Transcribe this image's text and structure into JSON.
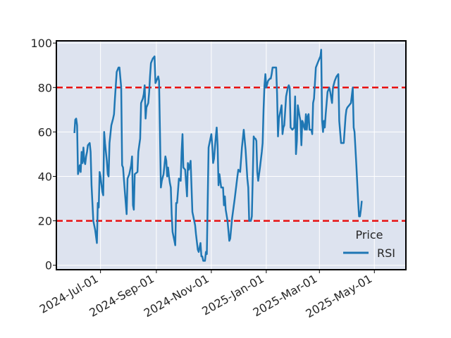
{
  "chart_data": {
    "type": "line",
    "title": "",
    "xlabel": "",
    "ylabel": "",
    "xlim": [
      "2024-05-13",
      "2025-06-05"
    ],
    "ylim": [
      -2,
      101
    ],
    "x_ticks": [
      {
        "date": "2024-07-01",
        "label": "2024-Jul-01"
      },
      {
        "date": "2024-09-01",
        "label": "2024-Sep-01"
      },
      {
        "date": "2024-11-01",
        "label": "2024-Nov-01"
      },
      {
        "date": "2025-01-01",
        "label": "2025-Jan-01"
      },
      {
        "date": "2025-03-01",
        "label": "2025-Mar-01"
      },
      {
        "date": "2025-05-01",
        "label": "2025-May-01"
      }
    ],
    "y_ticks": [
      {
        "value": 0,
        "label": "0"
      },
      {
        "value": 20,
        "label": "20"
      },
      {
        "value": 40,
        "label": "40"
      },
      {
        "value": 60,
        "label": "60"
      },
      {
        "value": 80,
        "label": "80"
      },
      {
        "value": 100,
        "label": "100"
      }
    ],
    "grid": true,
    "background_color": "#dde3ef",
    "reference_lines": [
      {
        "y": 80,
        "color": "#e81010",
        "style": "dashed"
      },
      {
        "y": 20,
        "color": "#e81010",
        "style": "dashed"
      }
    ],
    "legend": {
      "title": "Price",
      "position": "lower-right"
    },
    "series": [
      {
        "name": "RSI",
        "color": "#1f77b4",
        "points": [
          [
            "2024-06-02",
            59.5
          ],
          [
            "2024-06-03",
            65.5
          ],
          [
            "2024-06-04",
            66
          ],
          [
            "2024-06-05",
            63
          ],
          [
            "2024-06-06",
            41
          ],
          [
            "2024-06-07",
            43
          ],
          [
            "2024-06-08",
            45
          ],
          [
            "2024-06-09",
            42
          ],
          [
            "2024-06-10",
            51
          ],
          [
            "2024-06-11",
            46
          ],
          [
            "2024-06-12",
            53
          ],
          [
            "2024-06-13",
            47
          ],
          [
            "2024-06-14",
            45.5
          ],
          [
            "2024-06-15",
            49
          ],
          [
            "2024-06-16",
            51
          ],
          [
            "2024-06-17",
            54
          ],
          [
            "2024-06-19",
            55
          ],
          [
            "2024-06-20",
            51
          ],
          [
            "2024-06-21",
            36
          ],
          [
            "2024-06-23",
            20
          ],
          [
            "2024-06-25",
            16
          ],
          [
            "2024-06-27",
            10
          ],
          [
            "2024-06-28",
            28
          ],
          [
            "2024-06-29",
            26
          ],
          [
            "2024-06-30",
            42
          ],
          [
            "2024-07-01",
            40
          ],
          [
            "2024-07-03",
            33
          ],
          [
            "2024-07-04",
            31.5
          ],
          [
            "2024-07-05",
            60
          ],
          [
            "2024-07-06",
            55
          ],
          [
            "2024-07-08",
            47
          ],
          [
            "2024-07-09",
            41
          ],
          [
            "2024-07-10",
            40
          ],
          [
            "2024-07-11",
            55
          ],
          [
            "2024-07-13",
            63
          ],
          [
            "2024-07-15",
            66
          ],
          [
            "2024-07-16",
            68
          ],
          [
            "2024-07-17",
            75
          ],
          [
            "2024-07-19",
            87
          ],
          [
            "2024-07-21",
            89
          ],
          [
            "2024-07-22",
            89
          ],
          [
            "2024-07-24",
            80
          ],
          [
            "2024-07-25",
            45
          ],
          [
            "2024-07-26",
            44
          ],
          [
            "2024-07-28",
            33
          ],
          [
            "2024-07-30",
            23
          ],
          [
            "2024-07-31",
            39
          ],
          [
            "2024-08-02",
            41
          ],
          [
            "2024-08-04",
            45
          ],
          [
            "2024-08-05",
            49
          ],
          [
            "2024-08-06",
            27
          ],
          [
            "2024-08-07",
            25
          ],
          [
            "2024-08-08",
            41
          ],
          [
            "2024-08-11",
            42
          ],
          [
            "2024-08-12",
            51
          ],
          [
            "2024-08-14",
            57
          ],
          [
            "2024-08-15",
            73
          ],
          [
            "2024-08-17",
            75
          ],
          [
            "2024-08-18",
            77
          ],
          [
            "2024-08-19",
            81
          ],
          [
            "2024-08-20",
            66
          ],
          [
            "2024-08-21",
            71
          ],
          [
            "2024-08-23",
            73
          ],
          [
            "2024-08-24",
            78
          ],
          [
            "2024-08-25",
            85
          ],
          [
            "2024-08-26",
            91
          ],
          [
            "2024-08-28",
            93
          ],
          [
            "2024-08-30",
            94
          ],
          [
            "2024-08-31",
            82
          ],
          [
            "2024-09-01",
            83
          ],
          [
            "2024-09-03",
            85
          ],
          [
            "2024-09-04",
            83
          ],
          [
            "2024-09-05",
            60
          ],
          [
            "2024-09-06",
            35
          ],
          [
            "2024-09-07",
            38
          ],
          [
            "2024-09-09",
            41
          ],
          [
            "2024-09-11",
            49
          ],
          [
            "2024-09-12",
            47
          ],
          [
            "2024-09-13",
            40
          ],
          [
            "2024-09-14",
            44
          ],
          [
            "2024-09-15",
            40
          ],
          [
            "2024-09-16",
            37
          ],
          [
            "2024-09-17",
            35
          ],
          [
            "2024-09-18",
            23
          ],
          [
            "2024-09-19",
            15
          ],
          [
            "2024-09-21",
            11
          ],
          [
            "2024-09-22",
            9
          ],
          [
            "2024-09-23",
            28
          ],
          [
            "2024-09-24",
            28
          ],
          [
            "2024-09-26",
            39
          ],
          [
            "2024-09-28",
            38
          ],
          [
            "2024-09-29",
            51
          ],
          [
            "2024-09-30",
            59
          ],
          [
            "2024-10-01",
            44
          ],
          [
            "2024-10-03",
            43
          ],
          [
            "2024-10-05",
            31
          ],
          [
            "2024-10-06",
            46
          ],
          [
            "2024-10-07",
            43
          ],
          [
            "2024-10-09",
            47
          ],
          [
            "2024-10-11",
            24
          ],
          [
            "2024-10-12",
            22
          ],
          [
            "2024-10-14",
            18
          ],
          [
            "2024-10-15",
            14
          ],
          [
            "2024-10-17",
            7
          ],
          [
            "2024-10-18",
            6
          ],
          [
            "2024-10-20",
            10
          ],
          [
            "2024-10-21",
            4
          ],
          [
            "2024-10-22",
            4
          ],
          [
            "2024-10-23",
            2
          ],
          [
            "2024-10-25",
            2
          ],
          [
            "2024-10-26",
            6
          ],
          [
            "2024-10-27",
            5
          ],
          [
            "2024-10-29",
            53
          ],
          [
            "2024-10-31",
            57
          ],
          [
            "2024-11-01",
            59
          ],
          [
            "2024-11-02",
            54
          ],
          [
            "2024-11-03",
            46
          ],
          [
            "2024-11-04",
            48
          ],
          [
            "2024-11-06",
            58
          ],
          [
            "2024-11-07",
            62
          ],
          [
            "2024-11-08",
            54
          ],
          [
            "2024-11-09",
            36
          ],
          [
            "2024-11-10",
            41
          ],
          [
            "2024-11-12",
            35
          ],
          [
            "2024-11-14",
            35
          ],
          [
            "2024-11-15",
            27
          ],
          [
            "2024-11-16",
            31
          ],
          [
            "2024-11-17",
            25
          ],
          [
            "2024-11-19",
            20
          ],
          [
            "2024-11-21",
            11
          ],
          [
            "2024-11-22",
            12
          ],
          [
            "2024-11-24",
            21
          ],
          [
            "2024-11-27",
            30
          ],
          [
            "2024-11-30",
            40
          ],
          [
            "2024-12-01",
            43
          ],
          [
            "2024-12-03",
            42
          ],
          [
            "2024-12-05",
            53
          ],
          [
            "2024-12-07",
            61
          ],
          [
            "2024-12-09",
            52
          ],
          [
            "2024-12-11",
            39
          ],
          [
            "2024-12-12",
            35
          ],
          [
            "2024-12-13",
            20
          ],
          [
            "2024-12-15",
            20
          ],
          [
            "2024-12-16",
            22
          ],
          [
            "2024-12-18",
            58
          ],
          [
            "2024-12-19",
            57
          ],
          [
            "2024-12-20",
            57
          ],
          [
            "2024-12-21",
            56
          ],
          [
            "2024-12-22",
            42
          ],
          [
            "2024-12-23",
            38
          ],
          [
            "2024-12-25",
            44
          ],
          [
            "2024-12-27",
            51
          ],
          [
            "2024-12-28",
            55
          ],
          [
            "2024-12-29",
            70
          ],
          [
            "2024-12-30",
            81
          ],
          [
            "2024-12-31",
            86
          ],
          [
            "2025-01-01",
            80
          ],
          [
            "2025-01-03",
            83
          ],
          [
            "2025-01-05",
            84
          ],
          [
            "2025-01-06",
            84
          ],
          [
            "2025-01-07",
            86
          ],
          [
            "2025-01-08",
            89
          ],
          [
            "2025-01-10",
            89
          ],
          [
            "2025-01-12",
            89
          ],
          [
            "2025-01-13",
            77
          ],
          [
            "2025-01-14",
            58
          ],
          [
            "2025-01-15",
            66
          ],
          [
            "2025-01-17",
            70
          ],
          [
            "2025-01-18",
            72
          ],
          [
            "2025-01-19",
            59
          ],
          [
            "2025-01-20",
            62
          ],
          [
            "2025-01-21",
            63
          ],
          [
            "2025-01-23",
            76
          ],
          [
            "2025-01-25",
            80
          ],
          [
            "2025-01-26",
            81
          ],
          [
            "2025-01-27",
            80
          ],
          [
            "2025-01-28",
            62
          ],
          [
            "2025-01-30",
            61
          ],
          [
            "2025-02-01",
            62
          ],
          [
            "2025-02-02",
            76
          ],
          [
            "2025-02-03",
            50
          ],
          [
            "2025-02-04",
            56
          ],
          [
            "2025-02-05",
            72
          ],
          [
            "2025-02-07",
            67
          ],
          [
            "2025-02-08",
            65
          ],
          [
            "2025-02-09",
            54
          ],
          [
            "2025-02-10",
            65
          ],
          [
            "2025-02-11",
            64
          ],
          [
            "2025-02-12",
            62
          ],
          [
            "2025-02-13",
            61
          ],
          [
            "2025-02-14",
            68
          ],
          [
            "2025-02-15",
            61
          ],
          [
            "2025-02-16",
            67
          ],
          [
            "2025-02-17",
            68
          ],
          [
            "2025-02-18",
            61
          ],
          [
            "2025-02-20",
            61
          ],
          [
            "2025-02-21",
            59
          ],
          [
            "2025-02-22",
            73
          ],
          [
            "2025-02-23",
            75
          ],
          [
            "2025-02-25",
            89
          ],
          [
            "2025-02-27",
            91
          ],
          [
            "2025-03-01",
            93
          ],
          [
            "2025-03-02",
            94
          ],
          [
            "2025-03-03",
            97
          ],
          [
            "2025-03-04",
            65
          ],
          [
            "2025-03-05",
            60
          ],
          [
            "2025-03-06",
            65
          ],
          [
            "2025-03-07",
            62
          ],
          [
            "2025-03-08",
            68
          ],
          [
            "2025-03-09",
            73
          ],
          [
            "2025-03-10",
            78
          ],
          [
            "2025-03-12",
            80
          ],
          [
            "2025-03-13",
            78
          ],
          [
            "2025-03-15",
            73
          ],
          [
            "2025-03-16",
            80
          ],
          [
            "2025-03-18",
            83
          ],
          [
            "2025-03-20",
            85
          ],
          [
            "2025-03-22",
            86
          ],
          [
            "2025-03-23",
            65
          ],
          [
            "2025-03-25",
            55
          ],
          [
            "2025-03-27",
            55
          ],
          [
            "2025-03-28",
            55
          ],
          [
            "2025-03-30",
            67
          ],
          [
            "2025-03-31",
            70
          ],
          [
            "2025-04-01",
            71
          ],
          [
            "2025-04-03",
            72
          ],
          [
            "2025-04-05",
            73
          ],
          [
            "2025-04-07",
            80
          ],
          [
            "2025-04-08",
            62
          ],
          [
            "2025-04-09",
            60
          ],
          [
            "2025-04-11",
            45
          ],
          [
            "2025-04-13",
            29
          ],
          [
            "2025-04-14",
            22
          ],
          [
            "2025-04-15",
            22
          ],
          [
            "2025-04-16",
            25
          ],
          [
            "2025-04-17",
            29
          ]
        ]
      }
    ]
  }
}
